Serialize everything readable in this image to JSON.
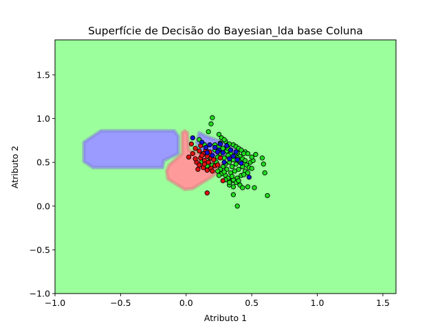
{
  "chart_data": {
    "type": "scatter",
    "title": "Superfície de Decisão do Bayesian_lda base Coluna",
    "xlabel": "Atributo 1",
    "ylabel": "Atributo 2",
    "xlim": [
      -1.0,
      1.6
    ],
    "ylim": [
      -1.0,
      1.9
    ],
    "xticks": [
      -1.0,
      -0.5,
      0.0,
      0.5,
      1.0,
      1.5
    ],
    "xtick_labels": [
      "−1.0",
      "−0.5",
      "0.0",
      "0.5",
      "1.0",
      "1.5"
    ],
    "yticks": [
      -1.0,
      -0.5,
      0.0,
      0.5,
      1.0,
      1.5
    ],
    "ytick_labels": [
      "−1.0",
      "−0.5",
      "0.0",
      "0.5",
      "1.0",
      "1.5"
    ],
    "grid": false,
    "legend": "none",
    "background_region_color": "#9bff9b",
    "regions": [
      {
        "class": "blue",
        "color": "#9a9aff",
        "polygon": [
          [
            -0.78,
            0.51
          ],
          [
            -0.71,
            0.44
          ],
          [
            -0.18,
            0.44
          ],
          [
            -0.17,
            0.52
          ],
          [
            -0.13,
            0.55
          ],
          [
            -0.06,
            0.6
          ],
          [
            -0.06,
            0.8
          ],
          [
            -0.09,
            0.86
          ],
          [
            -0.65,
            0.86
          ],
          [
            -0.78,
            0.73
          ]
        ]
      },
      {
        "class": "blue",
        "color": "#9a9aff",
        "polygon": [
          [
            0.1,
            0.84
          ],
          [
            0.15,
            0.8
          ],
          [
            0.26,
            0.74
          ],
          [
            0.36,
            0.66
          ],
          [
            0.4,
            0.58
          ],
          [
            0.38,
            0.55
          ],
          [
            0.32,
            0.56
          ],
          [
            0.22,
            0.58
          ],
          [
            0.13,
            0.62
          ],
          [
            0.08,
            0.72
          ]
        ]
      },
      {
        "class": "red",
        "color": "#ff9a9a",
        "polygon": [
          [
            -0.14,
            0.31
          ],
          [
            -0.01,
            0.19
          ],
          [
            0.05,
            0.2
          ],
          [
            0.19,
            0.33
          ],
          [
            0.26,
            0.41
          ],
          [
            0.27,
            0.48
          ],
          [
            0.21,
            0.52
          ],
          [
            0.15,
            0.56
          ],
          [
            0.09,
            0.6
          ],
          [
            0.02,
            0.64
          ],
          [
            0.01,
            0.84
          ],
          [
            -0.01,
            0.86
          ],
          [
            -0.03,
            0.84
          ],
          [
            -0.03,
            0.6
          ],
          [
            -0.13,
            0.47
          ],
          [
            -0.15,
            0.4
          ]
        ]
      }
    ],
    "series": [
      {
        "color": "#20dc20",
        "points": [
          [
            0.2,
            1.01
          ],
          [
            0.19,
            0.94
          ],
          [
            0.17,
            0.85
          ],
          [
            0.25,
            0.82
          ],
          [
            0.27,
            0.78
          ],
          [
            0.3,
            0.74
          ],
          [
            0.33,
            0.71
          ],
          [
            0.36,
            0.7
          ],
          [
            0.38,
            0.68
          ],
          [
            0.4,
            0.66
          ],
          [
            0.42,
            0.64
          ],
          [
            0.45,
            0.62
          ],
          [
            0.47,
            0.6
          ],
          [
            0.44,
            0.6
          ],
          [
            0.41,
            0.57
          ],
          [
            0.39,
            0.55
          ],
          [
            0.36,
            0.53
          ],
          [
            0.33,
            0.5
          ],
          [
            0.3,
            0.48
          ],
          [
            0.28,
            0.45
          ],
          [
            0.26,
            0.42
          ],
          [
            0.24,
            0.4
          ],
          [
            0.27,
            0.37
          ],
          [
            0.3,
            0.35
          ],
          [
            0.32,
            0.32
          ],
          [
            0.35,
            0.29
          ],
          [
            0.38,
            0.27
          ],
          [
            0.41,
            0.24
          ],
          [
            0.43,
            0.21
          ],
          [
            0.47,
            0.22
          ],
          [
            0.36,
            0.22
          ],
          [
            0.33,
            0.24
          ],
          [
            0.3,
            0.3
          ],
          [
            0.34,
            0.38
          ],
          [
            0.37,
            0.4
          ],
          [
            0.4,
            0.42
          ],
          [
            0.43,
            0.45
          ],
          [
            0.46,
            0.47
          ],
          [
            0.49,
            0.5
          ],
          [
            0.51,
            0.52
          ],
          [
            0.5,
            0.56
          ],
          [
            0.48,
            0.44
          ],
          [
            0.45,
            0.4
          ],
          [
            0.42,
            0.35
          ],
          [
            0.39,
            0.32
          ],
          [
            0.36,
            0.3
          ],
          [
            0.33,
            0.27
          ],
          [
            0.31,
            0.42
          ],
          [
            0.35,
            0.45
          ],
          [
            0.38,
            0.48
          ],
          [
            0.41,
            0.51
          ],
          [
            0.43,
            0.54
          ],
          [
            0.37,
            0.58
          ],
          [
            0.34,
            0.6
          ],
          [
            0.31,
            0.63
          ],
          [
            0.28,
            0.66
          ],
          [
            0.25,
            0.68
          ],
          [
            0.22,
            0.7
          ],
          [
            0.26,
            0.72
          ],
          [
            0.29,
            0.76
          ],
          [
            0.22,
            0.64
          ],
          [
            0.24,
            0.56
          ],
          [
            0.26,
            0.6
          ],
          [
            0.29,
            0.55
          ],
          [
            0.32,
            0.58
          ],
          [
            0.2,
            0.47
          ],
          [
            0.23,
            0.5
          ],
          [
            0.18,
            0.55
          ],
          [
            0.53,
            0.59
          ],
          [
            0.58,
            0.55
          ],
          [
            0.59,
            0.48
          ],
          [
            0.6,
            0.38
          ],
          [
            0.52,
            0.21
          ],
          [
            0.62,
            0.12
          ],
          [
            0.39,
            0.0
          ],
          [
            0.36,
            0.13
          ],
          [
            0.1,
            0.76
          ],
          [
            0.14,
            0.7
          ],
          [
            0.32,
            0.66
          ],
          [
            0.45,
            0.52
          ],
          [
            0.44,
            0.36
          ],
          [
            0.4,
            0.29
          ],
          [
            0.47,
            0.38
          ],
          [
            0.5,
            0.43
          ],
          [
            0.35,
            0.34
          ],
          [
            0.29,
            0.39
          ],
          [
            0.16,
            0.46
          ],
          [
            0.12,
            0.51
          ],
          [
            0.25,
            0.35
          ],
          [
            0.39,
            0.61
          ]
        ]
      },
      {
        "color": "#e01010",
        "points": [
          [
            0.07,
            0.66
          ],
          [
            0.1,
            0.63
          ],
          [
            0.13,
            0.6
          ],
          [
            0.16,
            0.57
          ],
          [
            0.19,
            0.55
          ],
          [
            0.11,
            0.55
          ],
          [
            0.14,
            0.52
          ],
          [
            0.08,
            0.5
          ],
          [
            0.1,
            0.47
          ],
          [
            0.13,
            0.44
          ],
          [
            0.16,
            0.41
          ],
          [
            0.19,
            0.43
          ],
          [
            0.22,
            0.46
          ],
          [
            0.05,
            0.6
          ],
          [
            0.07,
            0.54
          ],
          [
            0.12,
            0.58
          ],
          [
            0.15,
            0.64
          ],
          [
            0.17,
            0.5
          ],
          [
            0.21,
            0.53
          ],
          [
            0.09,
            0.42
          ],
          [
            0.14,
            0.48
          ],
          [
            0.18,
            0.62
          ],
          [
            0.11,
            0.69
          ],
          [
            0.26,
            0.55
          ],
          [
            0.28,
            0.29
          ],
          [
            0.02,
            0.56
          ],
          [
            0.04,
            0.71
          ],
          [
            0.16,
            0.15
          ],
          [
            0.24,
            0.47
          ],
          [
            0.2,
            0.4
          ]
        ]
      },
      {
        "color": "#1010d8",
        "points": [
          [
            0.05,
            0.78
          ],
          [
            0.12,
            0.73
          ],
          [
            0.18,
            0.7
          ],
          [
            0.22,
            0.67
          ],
          [
            0.25,
            0.64
          ],
          [
            0.28,
            0.61
          ],
          [
            0.31,
            0.69
          ],
          [
            0.34,
            0.64
          ],
          [
            0.36,
            0.57
          ],
          [
            0.39,
            0.53
          ],
          [
            0.42,
            0.49
          ],
          [
            0.26,
            0.71
          ],
          [
            0.2,
            0.58
          ],
          [
            0.15,
            0.67
          ],
          [
            0.33,
            0.54
          ],
          [
            0.38,
            0.62
          ],
          [
            0.48,
            0.33
          ],
          [
            0.24,
            0.62
          ],
          [
            0.29,
            0.5
          ],
          [
            0.16,
            0.61
          ]
        ]
      }
    ]
  }
}
